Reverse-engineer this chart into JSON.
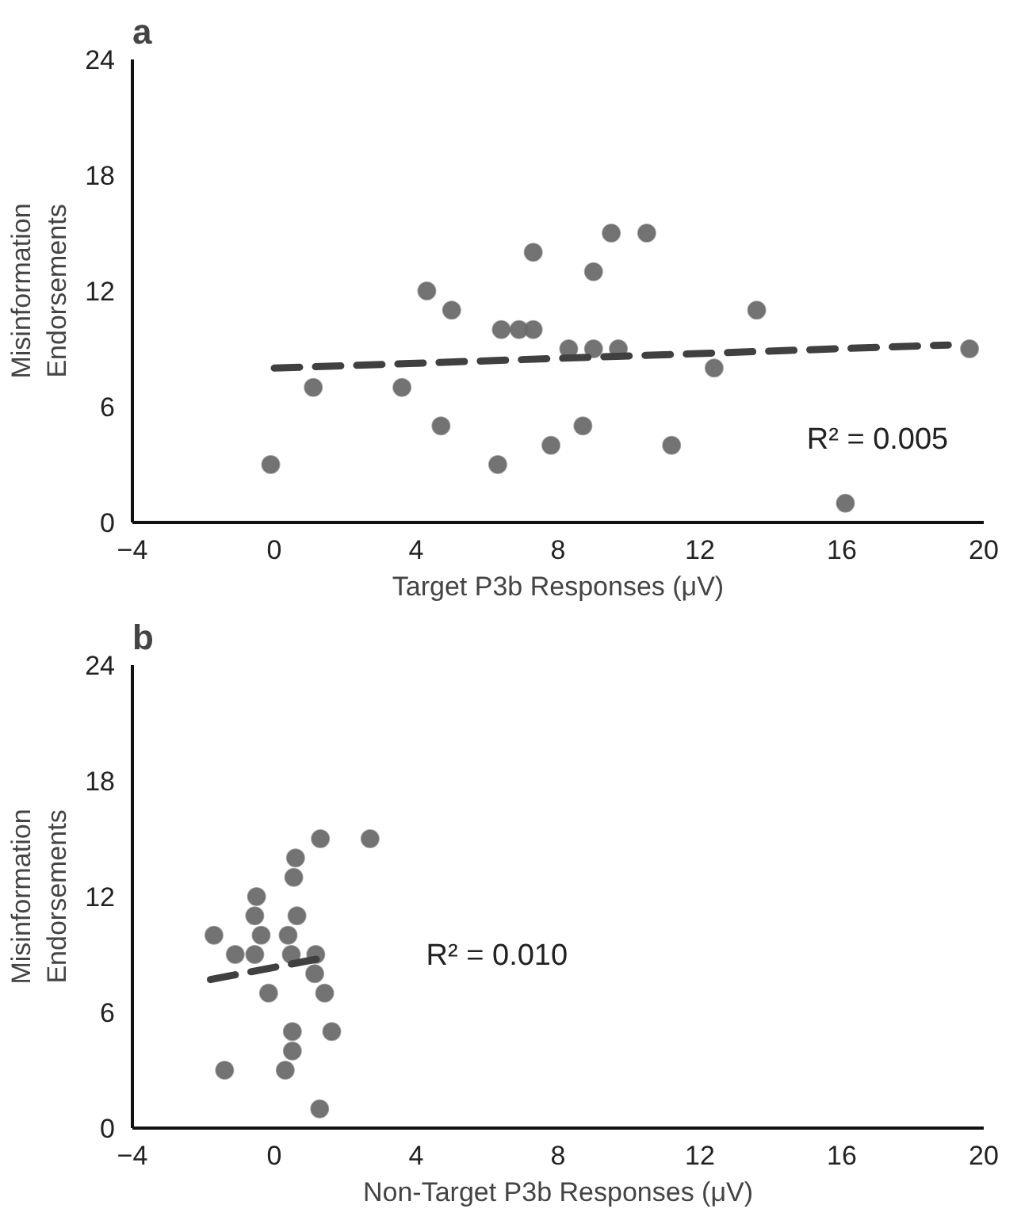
{
  "chart_data": [
    {
      "type": "scatter",
      "title": "a",
      "xlabel": "Target P3b Responses (μV)",
      "ylabel": "Misinformation\nEndorsements",
      "xlim": [
        -4,
        20
      ],
      "xticks": [
        -4,
        0,
        4,
        8,
        12,
        16,
        20
      ],
      "ylim": [
        0,
        24
      ],
      "yticks": [
        0,
        6,
        12,
        18,
        24
      ],
      "grid": false,
      "series": [
        {
          "marker": "circle",
          "color": "#6b6b6b",
          "x": [
            -0.1,
            1.1,
            3.6,
            4.3,
            5.0,
            4.7,
            6.4,
            6.9,
            7.3,
            7.3,
            6.3,
            7.8,
            8.3,
            9.0,
            9.7,
            9.0,
            9.5,
            10.5,
            8.7,
            11.2,
            12.4,
            13.6,
            16.1,
            19.6
          ],
          "values": [
            3,
            7,
            7,
            12,
            11,
            5,
            10,
            10,
            10,
            14,
            3,
            4,
            9,
            9,
            9,
            13,
            15,
            15,
            5,
            4,
            8,
            11,
            1,
            9
          ]
        },
        {
          "type": "line",
          "color": "#404040",
          "line_style": "dashed",
          "x": [
            0,
            19.0
          ],
          "values": [
            8.0,
            9.2
          ]
        }
      ],
      "annotations": [
        "R² = 0.005"
      ]
    },
    {
      "type": "scatter",
      "title": "b",
      "xlabel": "Non-Target P3b Responses (μV)",
      "ylabel": "Misinformation\nEndorsements",
      "xlim": [
        -4,
        20
      ],
      "xticks": [
        -4,
        0,
        4,
        8,
        12,
        16,
        20
      ],
      "ylim": [
        0,
        24
      ],
      "yticks": [
        0,
        6,
        12,
        18,
        24
      ],
      "grid": false,
      "series": [
        {
          "marker": "circle",
          "color": "#6b6b6b",
          "x": [
            1.3,
            2.7,
            0.6,
            0.55,
            -0.5,
            -0.55,
            0.64,
            -1.7,
            -0.37,
            0.39,
            -1.1,
            -0.55,
            0.48,
            1.17,
            1.14,
            -0.16,
            1.42,
            0.51,
            1.62,
            0.51,
            0.31,
            -1.4,
            1.28
          ],
          "values": [
            15,
            15,
            14,
            13,
            12,
            11,
            11,
            10,
            10,
            10,
            9,
            9,
            9,
            9,
            8,
            7,
            7,
            5,
            5,
            4,
            3,
            3,
            1
          ]
        },
        {
          "type": "line",
          "color": "#404040",
          "line_style": "dashed",
          "x": [
            -1.8,
            1.6
          ],
          "values": [
            7.7,
            8.9
          ]
        }
      ],
      "annotations": [
        "R² = 0.010"
      ]
    }
  ]
}
